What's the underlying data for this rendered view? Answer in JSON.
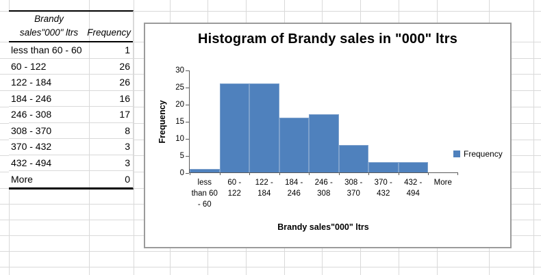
{
  "colors": {
    "bar_fill": "#4f81bd",
    "bar_border": "#7da1cc",
    "sheet_gridline": "#d9d9d9",
    "chart_border": "#9b9b9b",
    "axis_line": "#595959",
    "text": "#000000"
  },
  "table": {
    "header": {
      "col1_line1": "Brandy",
      "col1_line2": "sales\"000\" ltrs",
      "col2": "Frequency"
    },
    "rows": [
      {
        "label": "less than 60 - 60",
        "value": "1"
      },
      {
        "label": "60 - 122",
        "value": "26"
      },
      {
        "label": "122 - 184",
        "value": "26"
      },
      {
        "label": "184 - 246",
        "value": "16"
      },
      {
        "label": "246 - 308",
        "value": "17"
      },
      {
        "label": "308 - 370",
        "value": "8"
      },
      {
        "label": "370 - 432",
        "value": "3"
      },
      {
        "label": "432 - 494",
        "value": "3"
      },
      {
        "label": "More",
        "value": "0"
      }
    ]
  },
  "chart_data": {
    "type": "bar",
    "title": "Histogram of Brandy sales in \"000\" ltrs",
    "xlabel": "Brandy sales\"000\" ltrs",
    "ylabel": "Frequency",
    "categories": [
      "less than 60 - 60",
      "60 - 122",
      "122 - 184",
      "184 - 246",
      "246 - 308",
      "308 - 370",
      "370 - 432",
      "432 - 494",
      "More"
    ],
    "tick_display": [
      "less\nthan 60\n- 60",
      "60 -\n122",
      "122 -\n184",
      "184 -\n246",
      "246 -\n308",
      "308 -\n370",
      "370 -\n432",
      "432 -\n494",
      "More"
    ],
    "values": [
      1,
      26,
      26,
      16,
      17,
      8,
      3,
      3,
      0
    ],
    "ylim": [
      0,
      30
    ],
    "yticks": [
      0,
      5,
      10,
      15,
      20,
      25,
      30
    ],
    "legend": [
      "Frequency"
    ],
    "legend_position": "right",
    "gap_width": 0,
    "grid": false
  }
}
